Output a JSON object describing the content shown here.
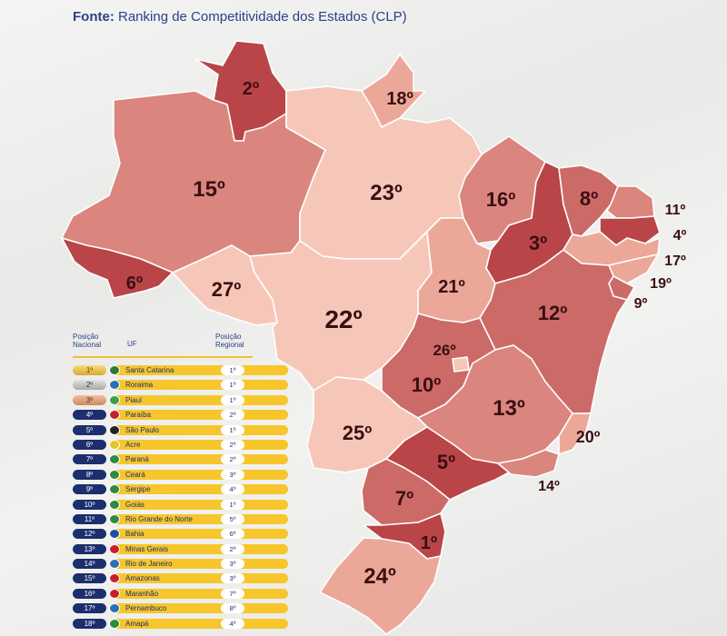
{
  "source": {
    "label": "Fonte:",
    "text": "Ranking de Competitividade dos Estados (CLP)"
  },
  "colors": {
    "darkest": "#b94548",
    "dark": "#cc6a68",
    "medium": "#db857f",
    "light": "#eba899",
    "lightest": "#f6c7b8",
    "text": "#3a0f12",
    "navy": "#1d2e6e",
    "yellow": "#f6c62c"
  },
  "map": {
    "states": [
      {
        "id": "RR",
        "rank": "2º",
        "color": "darkest"
      },
      {
        "id": "AP",
        "rank": "18º",
        "color": "light"
      },
      {
        "id": "AM",
        "rank": "15º",
        "color": "medium"
      },
      {
        "id": "PA",
        "rank": "23º",
        "color": "lightest"
      },
      {
        "id": "MA",
        "rank": "16º",
        "color": "medium"
      },
      {
        "id": "PI",
        "rank": "3º",
        "color": "darkest"
      },
      {
        "id": "CE",
        "rank": "8º",
        "color": "dark"
      },
      {
        "id": "RN",
        "rank": "11º",
        "color": "medium"
      },
      {
        "id": "PB",
        "rank": "4º",
        "color": "darkest"
      },
      {
        "id": "PE",
        "rank": "17º",
        "color": "light"
      },
      {
        "id": "AL",
        "rank": "19º",
        "color": "light"
      },
      {
        "id": "SE",
        "rank": "9º",
        "color": "dark"
      },
      {
        "id": "AC",
        "rank": "6º",
        "color": "darkest"
      },
      {
        "id": "RO",
        "rank": "27º",
        "color": "lightest"
      },
      {
        "id": "MT",
        "rank": "22º",
        "color": "lightest"
      },
      {
        "id": "TO",
        "rank": "21º",
        "color": "light"
      },
      {
        "id": "BA",
        "rank": "12º",
        "color": "dark"
      },
      {
        "id": "GO",
        "rank": "10º",
        "color": "dark"
      },
      {
        "id": "DF",
        "rank": "26º",
        "color": "lightest"
      },
      {
        "id": "MG",
        "rank": "13º",
        "color": "medium"
      },
      {
        "id": "ES",
        "rank": "20º",
        "color": "light"
      },
      {
        "id": "MS",
        "rank": "25º",
        "color": "lightest"
      },
      {
        "id": "SP",
        "rank": "5º",
        "color": "darkest"
      },
      {
        "id": "RJ",
        "rank": "14º",
        "color": "medium"
      },
      {
        "id": "PR",
        "rank": "7º",
        "color": "dark"
      },
      {
        "id": "SC",
        "rank": "1º",
        "color": "darkest"
      },
      {
        "id": "RS",
        "rank": "24º",
        "color": "light"
      }
    ]
  },
  "ranking": {
    "col_national": "Posição Nacional",
    "col_uf": "UF",
    "col_regional": "Posição Regional",
    "rows": [
      {
        "nat": "1º",
        "uf": "Santa Catarina",
        "reg": "1º",
        "medal": "g",
        "flag": "#2a7a3a"
      },
      {
        "nat": "2º",
        "uf": "Roraima",
        "reg": "1º",
        "medal": "s",
        "flag": "#2c6fb5"
      },
      {
        "nat": "3º",
        "uf": "Piauí",
        "reg": "1º",
        "medal": "b",
        "flag": "#3aa04a"
      },
      {
        "nat": "4º",
        "uf": "Paraíba",
        "reg": "2º",
        "medal": "",
        "flag": "#c8202a"
      },
      {
        "nat": "5º",
        "uf": "São Paulo",
        "reg": "1º",
        "medal": "",
        "flag": "#222222"
      },
      {
        "nat": "6º",
        "uf": "Acre",
        "reg": "2º",
        "medal": "",
        "flag": "#e8c42a"
      },
      {
        "nat": "7º",
        "uf": "Paraná",
        "reg": "2º",
        "medal": "",
        "flag": "#2e8a3e"
      },
      {
        "nat": "8º",
        "uf": "Ceará",
        "reg": "3º",
        "medal": "",
        "flag": "#2e8a3e"
      },
      {
        "nat": "9º",
        "uf": "Sergipe",
        "reg": "4º",
        "medal": "",
        "flag": "#2e8a3e"
      },
      {
        "nat": "10º",
        "uf": "Goiás",
        "reg": "1º",
        "medal": "",
        "flag": "#2e8a3e"
      },
      {
        "nat": "11º",
        "uf": "Rio Grande do Norte",
        "reg": "5º",
        "medal": "",
        "flag": "#2e8a3e"
      },
      {
        "nat": "12º",
        "uf": "Bahia",
        "reg": "6º",
        "medal": "",
        "flag": "#2050a0"
      },
      {
        "nat": "13º",
        "uf": "Minas Gerais",
        "reg": "2º",
        "medal": "",
        "flag": "#c8202a"
      },
      {
        "nat": "14º",
        "uf": "Rio de Janeiro",
        "reg": "3º",
        "medal": "",
        "flag": "#2c6fb5"
      },
      {
        "nat": "15º",
        "uf": "Amazonas",
        "reg": "3º",
        "medal": "",
        "flag": "#c8202a"
      },
      {
        "nat": "16º",
        "uf": "Maranhão",
        "reg": "7º",
        "medal": "",
        "flag": "#c8202a"
      },
      {
        "nat": "17º",
        "uf": "Pernambuco",
        "reg": "8º",
        "medal": "",
        "flag": "#2c6fb5"
      },
      {
        "nat": "18º",
        "uf": "Amapá",
        "reg": "4º",
        "medal": "",
        "flag": "#2e8a3e"
      }
    ]
  }
}
